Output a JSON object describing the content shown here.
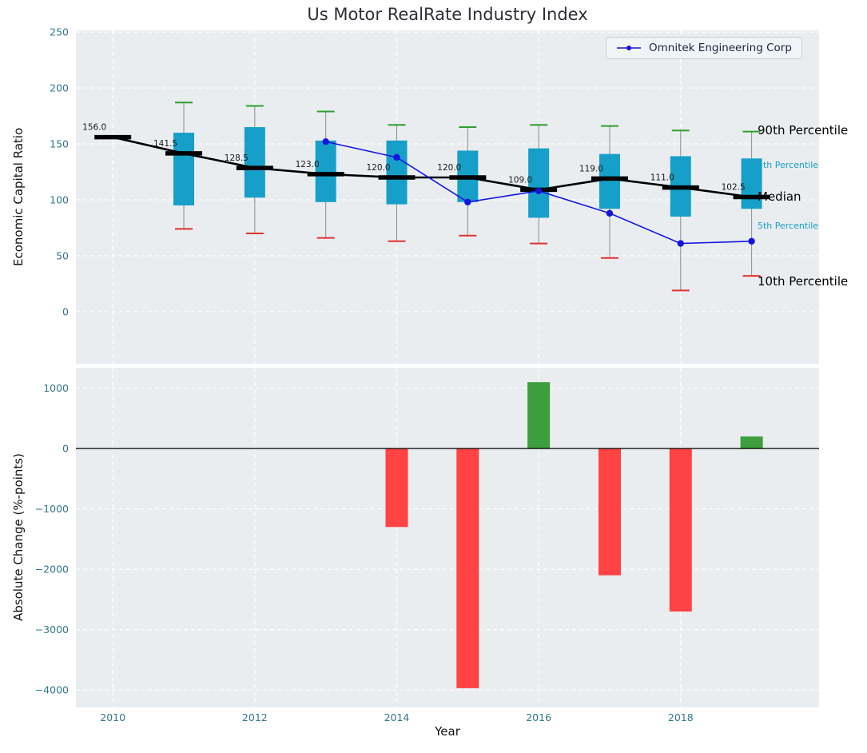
{
  "figure": {
    "title": "Us Motor RealRate Industry Index",
    "legend_label": "Omnitek Engineering Corp",
    "colors": {
      "box_fill": "#169fc8",
      "median": "#000000",
      "company_line": "#1414e0",
      "cap_top": "#2e9e2e",
      "cap_bottom": "#e03131",
      "whisker": "#8a8a8a",
      "bar_positive": "#3c9e3c",
      "bar_negative": "#ff4242",
      "plot_bg": "#e9edf0",
      "tick_color": "#35778a",
      "median_label_color": "#1a1a1a",
      "zero_line": "#000000"
    }
  },
  "chart_data": [
    {
      "id": "top",
      "type": "boxplot",
      "title": "Us Motor RealRate Industry Index",
      "ylabel": "Economic Capital Ratio",
      "grid": true,
      "legend_label": "Omnitek Engineering Corp",
      "legend_position": "upper right",
      "xlim": [
        2009.48,
        2019.95
      ],
      "ylim": [
        -46.5,
        251.5
      ],
      "yticks": [
        0,
        50,
        100,
        150,
        200,
        250
      ],
      "xticks": [
        2010,
        2012,
        2014,
        2016,
        2018
      ],
      "boxes": [
        {
          "year": 2010,
          "median": 156.0,
          "p25": null,
          "p75": null,
          "p10": null,
          "p90": null
        },
        {
          "year": 2011,
          "median": 141.5,
          "p25": 95,
          "p75": 160,
          "p10": 74,
          "p90": 187
        },
        {
          "year": 2012,
          "median": 128.5,
          "p25": 102,
          "p75": 165,
          "p10": 70,
          "p90": 184
        },
        {
          "year": 2013,
          "median": 123.0,
          "p25": 98,
          "p75": 153,
          "p10": 66,
          "p90": 179
        },
        {
          "year": 2014,
          "median": 120.0,
          "p25": 96,
          "p75": 153,
          "p10": 63,
          "p90": 167
        },
        {
          "year": 2015,
          "median": 120.0,
          "p25": 98,
          "p75": 144,
          "p10": 68,
          "p90": 165
        },
        {
          "year": 2016,
          "median": 109.0,
          "p25": 84,
          "p75": 146,
          "p10": 61,
          "p90": 167
        },
        {
          "year": 2017,
          "median": 119.0,
          "p25": 92,
          "p75": 141,
          "p10": 48,
          "p90": 166
        },
        {
          "year": 2018,
          "median": 111.0,
          "p25": 85,
          "p75": 139,
          "p10": 19,
          "p90": 162
        },
        {
          "year": 2019,
          "median": 102.5,
          "p25": 92,
          "p75": 137,
          "p10": 32,
          "p90": 161
        }
      ],
      "company_series": {
        "name": "Omnitek Engineering Corp",
        "x": [
          2013,
          2014,
          2015,
          2016,
          2017,
          2018,
          2019
        ],
        "y": [
          152,
          138,
          98,
          108,
          88,
          61,
          63
        ]
      },
      "right_labels": [
        {
          "text": "90th Percentile",
          "value": 162,
          "color": "#000000",
          "size": 15
        },
        {
          "text": "5th Percentile",
          "value": 132,
          "color": "#169fc8",
          "size": 11
        },
        {
          "text": "Median",
          "value": 103,
          "color": "#000000",
          "size": 15
        },
        {
          "text": "5th Percentile",
          "value": 78,
          "color": "#169fc8",
          "size": 11
        },
        {
          "text": "10th Percentile",
          "value": 27,
          "color": "#000000",
          "size": 15
        }
      ]
    },
    {
      "id": "bottom",
      "type": "bar",
      "ylabel": "Absolute Change (%-points)",
      "xlabel": "Year",
      "grid": true,
      "zero_line": true,
      "xlim": [
        2009.48,
        2019.95
      ],
      "ylim": [
        -4290,
        1340
      ],
      "yticks": [
        1000,
        0,
        -1000,
        -2000,
        -3000,
        -4000
      ],
      "xticks": [
        2010,
        2012,
        2014,
        2016,
        2018
      ],
      "categories": [
        2014,
        2015,
        2016,
        2017,
        2018,
        2019
      ],
      "values": [
        -1300,
        -3970,
        1100,
        -2100,
        -2700,
        200
      ]
    }
  ]
}
